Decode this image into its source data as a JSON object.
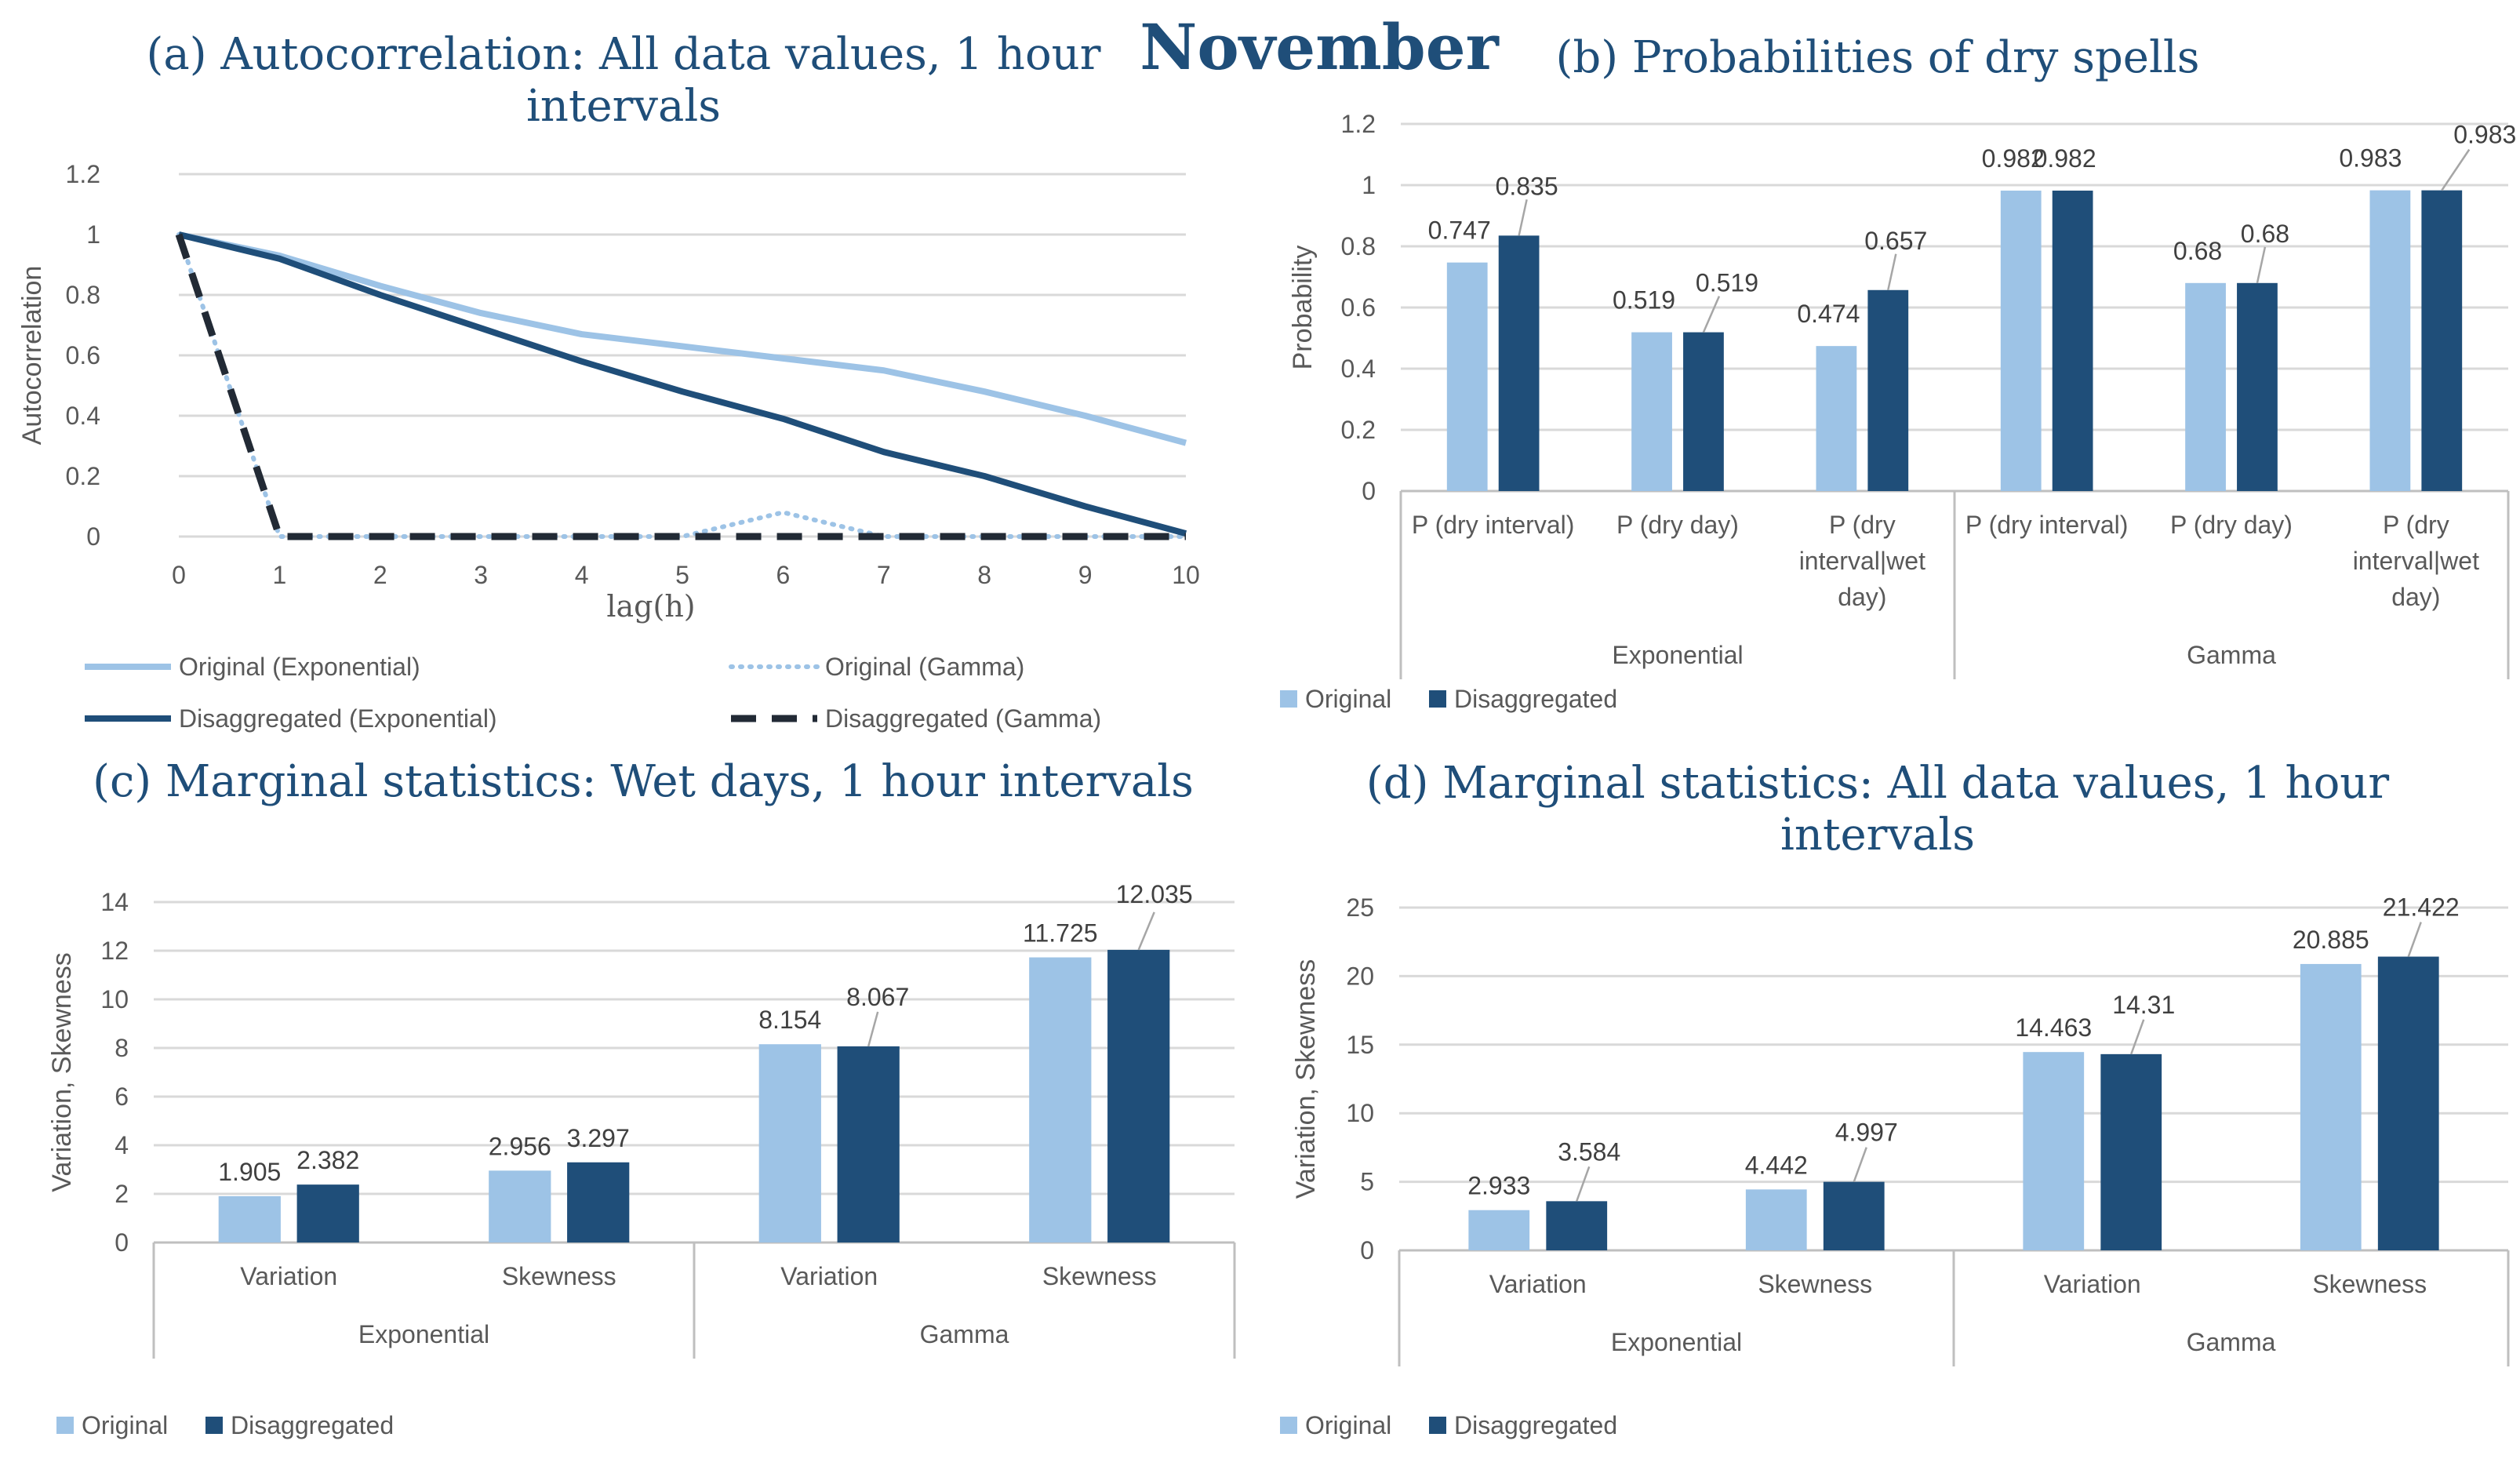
{
  "figure_title": "November",
  "colors": {
    "original": "#9dc3e6",
    "disaggregated": "#1f4e79",
    "title": "#1f4e79",
    "grid": "#d9d9d9",
    "axis_text": "#595959"
  },
  "chart_data": [
    {
      "id": "a",
      "type": "line",
      "title": "(a) Autocorrelation: All data values, 1 hour",
      "title_line2": "intervals",
      "xlabel": "lag(h)",
      "ylabel": "Autocorrelation",
      "x": [
        0,
        1,
        2,
        3,
        4,
        5,
        6,
        7,
        8,
        9,
        10
      ],
      "ylim": [
        0,
        1.2
      ],
      "yticks": [
        "0",
        "0.2",
        "0.4",
        "0.6",
        "0.8",
        "1",
        "1.2"
      ],
      "series": [
        {
          "name": "Original (Exponential)",
          "style": "solid-light",
          "values": [
            1,
            0.93,
            0.83,
            0.74,
            0.67,
            0.63,
            0.59,
            0.55,
            0.48,
            0.4,
            0.31
          ]
        },
        {
          "name": "Original (Gamma)",
          "style": "dotted-light",
          "values": [
            1,
            0,
            0,
            0,
            0,
            0,
            0.08,
            0,
            0,
            0,
            0
          ]
        },
        {
          "name": "Disaggregated (Exponential)",
          "style": "solid-dark",
          "values": [
            1,
            0.92,
            0.8,
            0.69,
            0.58,
            0.48,
            0.39,
            0.28,
            0.2,
            0.1,
            0.01
          ]
        },
        {
          "name": "Disaggregated (Gamma)",
          "style": "dashed-dark",
          "values": [
            1,
            0,
            0,
            0,
            0,
            0,
            0,
            0,
            0,
            0,
            0
          ]
        }
      ]
    },
    {
      "id": "b",
      "type": "bar",
      "title": "(b) Probabilities of dry spells",
      "ylabel": "Probability",
      "ylim": [
        0,
        1.2
      ],
      "yticks": [
        "0",
        "0.2",
        "0.4",
        "0.6",
        "0.8",
        "1",
        "1.2"
      ],
      "groups": [
        "Exponential",
        "Gamma"
      ],
      "categories": [
        {
          "label": [
            "P (dry interval)"
          ],
          "group": "Exponential"
        },
        {
          "label": [
            "P (dry day)"
          ],
          "group": "Exponential"
        },
        {
          "label": [
            "P (dry",
            "interval|wet",
            "day)"
          ],
          "group": "Exponential"
        },
        {
          "label": [
            "P (dry interval)"
          ],
          "group": "Gamma"
        },
        {
          "label": [
            "P (dry day)"
          ],
          "group": "Gamma"
        },
        {
          "label": [
            "P (dry",
            "interval|wet",
            "day)"
          ],
          "group": "Gamma"
        }
      ],
      "series": [
        {
          "name": "Original",
          "values": [
            0.747,
            0.519,
            0.474,
            0.982,
            0.68,
            0.983
          ],
          "labels": [
            "0.747",
            "0.519",
            "0.474",
            "0.982",
            "0.68",
            "0.983"
          ]
        },
        {
          "name": "Disaggregated",
          "values": [
            0.835,
            0.519,
            0.657,
            0.982,
            0.68,
            0.983
          ],
          "labels": [
            "0.835",
            "0.519",
            "0.657",
            "0.982",
            "0.68",
            "0.983"
          ]
        }
      ]
    },
    {
      "id": "c",
      "type": "bar",
      "title": "(c) Marginal statistics: Wet days, 1 hour intervals",
      "ylabel": "Variation, Skewness",
      "ylim": [
        0,
        14
      ],
      "yticks": [
        "0",
        "2",
        "4",
        "6",
        "8",
        "10",
        "12",
        "14"
      ],
      "groups": [
        "Exponential",
        "Gamma"
      ],
      "categories": [
        {
          "label": [
            "Variation"
          ],
          "group": "Exponential"
        },
        {
          "label": [
            "Skewness"
          ],
          "group": "Exponential"
        },
        {
          "label": [
            "Variation"
          ],
          "group": "Gamma"
        },
        {
          "label": [
            "Skewness"
          ],
          "group": "Gamma"
        }
      ],
      "series": [
        {
          "name": "Original",
          "values": [
            1.905,
            2.956,
            8.154,
            11.725
          ],
          "labels": [
            "1.905",
            "2.956",
            "8.154",
            "11.725"
          ]
        },
        {
          "name": "Disaggregated",
          "values": [
            2.382,
            3.297,
            8.067,
            12.035
          ],
          "labels": [
            "2.382",
            "3.297",
            "8.067",
            "12.035"
          ]
        }
      ]
    },
    {
      "id": "d",
      "type": "bar",
      "title": "(d) Marginal statistics: All data values, 1 hour",
      "title_line2": "intervals",
      "ylabel": "Variation, Skewness",
      "ylim": [
        0,
        25
      ],
      "yticks": [
        "0",
        "5",
        "10",
        "15",
        "20",
        "25"
      ],
      "groups": [
        "Exponential",
        "Gamma"
      ],
      "categories": [
        {
          "label": [
            "Variation"
          ],
          "group": "Exponential"
        },
        {
          "label": [
            "Skewness"
          ],
          "group": "Exponential"
        },
        {
          "label": [
            "Variation"
          ],
          "group": "Gamma"
        },
        {
          "label": [
            "Skewness"
          ],
          "group": "Gamma"
        }
      ],
      "series": [
        {
          "name": "Original",
          "values": [
            2.933,
            4.442,
            14.463,
            20.885
          ],
          "labels": [
            "2.933",
            "4.442",
            "14.463",
            "20.885"
          ]
        },
        {
          "name": "Disaggregated",
          "values": [
            3.584,
            4.997,
            14.31,
            21.422
          ],
          "labels": [
            "3.584",
            "4.997",
            "14.31",
            "21.422"
          ]
        }
      ]
    }
  ]
}
